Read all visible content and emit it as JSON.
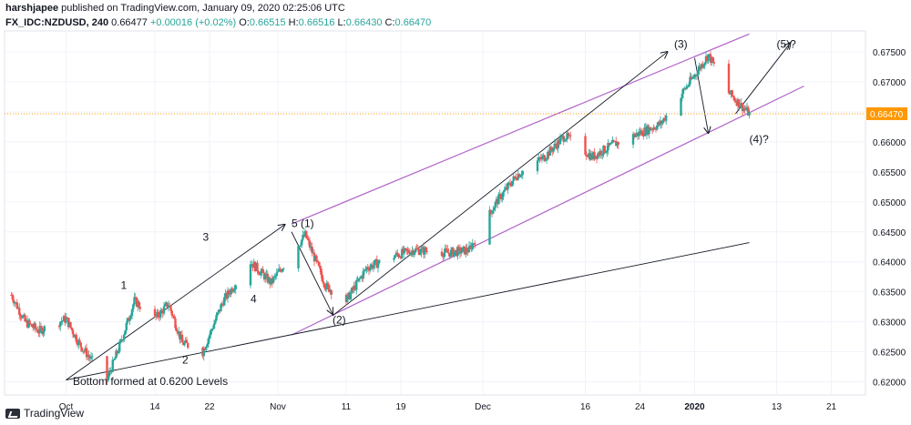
{
  "header": {
    "author": "harshjapee",
    "published": "published on TradingView.com, January 09, 2020 02:25:06 UTC",
    "symbol": "FX_IDC:NZDUSD, 240",
    "last": "0.66477",
    "change": "+0.00016 (+0.02%)",
    "open_label": "O:",
    "open": "0.66515",
    "high_label": "H:",
    "high": "0.66516",
    "low_label": "L:",
    "low": "0.66430",
    "close_label": "C:",
    "close": "0.66470"
  },
  "footer": {
    "brand": "TradingView"
  },
  "colors": {
    "up": "#26a69a",
    "down": "#ef5350",
    "channel": "#b163c8",
    "trend": "#131722",
    "price_line": "#ff9800",
    "price_tag": "#ff9800"
  },
  "chart_data": {
    "type": "line",
    "chart_style": "candlestick",
    "title": "",
    "xlabel": "",
    "ylabel": "",
    "x_ticks": [
      "Oct",
      "14",
      "22",
      "Nov",
      "11",
      "19",
      "Dec",
      "16",
      "24",
      "2020",
      "13",
      "21"
    ],
    "y_ticks": [
      "0.62000",
      "0.62500",
      "0.63000",
      "0.63500",
      "0.64000",
      "0.64500",
      "0.65000",
      "0.65500",
      "0.66000",
      "0.66500",
      "0.67000",
      "0.67500"
    ],
    "ylim": [
      0.6178,
      0.6785
    ],
    "current_price_label": "0.66470",
    "grid": true,
    "price_path": {
      "name": "NZDUSD 4h close (approx.)",
      "x": [
        "2019-09-23",
        "2019-09-25",
        "2019-09-27",
        "2019-10-01",
        "2019-10-03",
        "2019-10-07",
        "2019-10-09",
        "2019-10-11",
        "2019-10-14",
        "2019-10-16",
        "2019-10-18",
        "2019-10-21",
        "2019-10-24",
        "2019-10-28",
        "2019-10-31",
        "2019-11-05",
        "2019-11-08",
        "2019-11-11",
        "2019-11-14",
        "2019-11-18",
        "2019-11-21",
        "2019-11-26",
        "2019-11-29",
        "2019-12-03",
        "2019-12-06",
        "2019-12-10",
        "2019-12-13",
        "2019-12-17",
        "2019-12-20",
        "2019-12-24",
        "2019-12-27",
        "2019-12-31",
        "2020-01-03",
        "2020-01-06",
        "2020-01-09"
      ],
      "close": [
        0.6345,
        0.63,
        0.6285,
        0.6305,
        0.6262,
        0.6203,
        0.6265,
        0.6335,
        0.6305,
        0.633,
        0.6265,
        0.625,
        0.6335,
        0.64,
        0.6365,
        0.6445,
        0.636,
        0.6335,
        0.639,
        0.641,
        0.642,
        0.6415,
        0.642,
        0.65,
        0.6545,
        0.6575,
        0.661,
        0.6575,
        0.6595,
        0.6615,
        0.663,
        0.6695,
        0.6745,
        0.6682,
        0.6647
      ]
    },
    "annotations": [
      {
        "text": "1",
        "x": "2019-10-09",
        "y": 0.6355
      },
      {
        "text": "2",
        "x": "2019-10-18",
        "y": 0.623
      },
      {
        "text": "3",
        "x": "2019-10-21",
        "y": 0.6435
      },
      {
        "text": "4",
        "x": "2019-10-28",
        "y": 0.6332
      },
      {
        "text": "5 (1)",
        "x": "2019-11-03",
        "y": 0.6458
      },
      {
        "text": "(2)",
        "x": "2019-11-09",
        "y": 0.6297
      },
      {
        "text": "(3)",
        "x": "2019-12-29",
        "y": 0.6757
      },
      {
        "text": "(4)?",
        "x": "2020-01-09",
        "y": 0.6598
      },
      {
        "text": "(5)?",
        "x": "2020-01-13",
        "y": 0.6757
      },
      {
        "text": "Bottom formed at 0.6200 Levels",
        "x": "2019-10-02",
        "y": 0.6195
      }
    ],
    "drawings": [
      {
        "type": "channel-upper",
        "from": {
          "x": "2019-11-03",
          "y": 0.6463
        },
        "to": {
          "x": "2020-01-09",
          "y": 0.678
        }
      },
      {
        "type": "channel-lower",
        "from": {
          "x": "2019-11-03",
          "y": 0.6278
        },
        "to": {
          "x": "2020-01-17",
          "y": 0.6693
        }
      },
      {
        "type": "trendline",
        "from": {
          "x": "2019-10-01",
          "y": 0.6203
        },
        "to": {
          "x": "2020-01-09",
          "y": 0.6432
        }
      },
      {
        "type": "arrow",
        "from": {
          "x": "2019-10-01",
          "y": 0.6203
        },
        "to": {
          "x": "2019-11-02",
          "y": 0.6462
        }
      },
      {
        "type": "arrow",
        "from": {
          "x": "2019-11-03",
          "y": 0.645
        },
        "to": {
          "x": "2019-11-09",
          "y": 0.6313
        }
      },
      {
        "type": "arrow",
        "from": {
          "x": "2019-11-09",
          "y": 0.631
        },
        "to": {
          "x": "2019-12-28",
          "y": 0.675
        }
      },
      {
        "type": "arrow",
        "from": {
          "x": "2020-01-01",
          "y": 0.674
        },
        "to": {
          "x": "2020-01-03",
          "y": 0.6615
        }
      },
      {
        "type": "arrow",
        "from": {
          "x": "2020-01-07",
          "y": 0.6647
        },
        "to": {
          "x": "2020-01-15",
          "y": 0.6765
        }
      }
    ]
  }
}
